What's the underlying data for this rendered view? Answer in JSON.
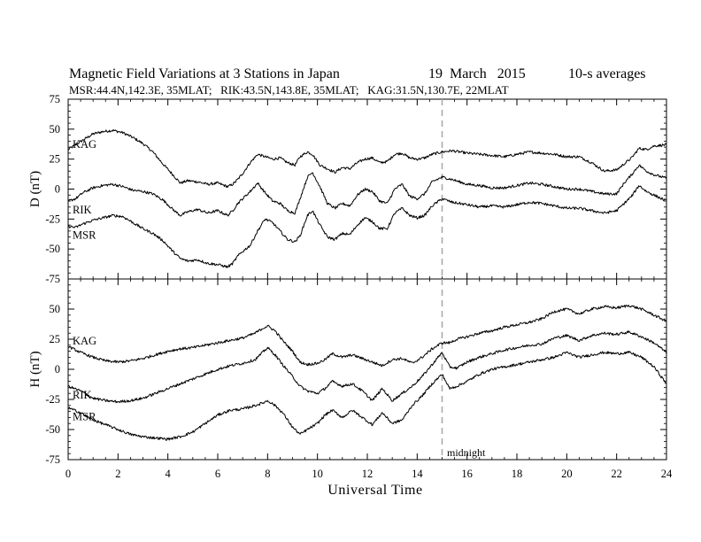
{
  "header": {
    "title": "Magnetic Field Variations at 3 Stations in Japan",
    "date": "19  March   2015",
    "averaging": "10-s averages",
    "stations_info": "MSR:44.4N,142.3E, 35MLAT;   RIK:43.5N,143.8E, 35MLAT;   KAG:31.5N,130.7E, 22MLAT"
  },
  "annotation": "midnight",
  "colors": {
    "trace": "#000000",
    "midnight_line": "#aaaaaa"
  },
  "chart_data": [
    {
      "type": "line",
      "panel": "D",
      "ylabel": "D (nT)",
      "xlim": [
        0,
        24
      ],
      "ylim": [
        -75,
        75
      ],
      "yticks": [
        75,
        50,
        25,
        0,
        -25,
        -50,
        -75
      ],
      "xticks": [
        0,
        2,
        4,
        6,
        8,
        10,
        12,
        14,
        16,
        18,
        20,
        22,
        24
      ],
      "vline_x": 15,
      "series": [
        {
          "name": "KAG",
          "x": [
            0,
            0.3,
            0.6,
            1,
            1.4,
            1.8,
            2.2,
            2.6,
            3,
            3.4,
            3.8,
            4.2,
            4.5,
            4.8,
            5.2,
            5.6,
            6,
            6.4,
            6.6,
            6.8,
            7,
            7.3,
            7.6,
            7.9,
            8.2,
            8.5,
            8.8,
            9.1,
            9.3,
            9.6,
            9.8,
            10.1,
            10.4,
            10.7,
            11,
            11.3,
            11.6,
            11.9,
            12.2,
            12.5,
            12.8,
            13.1,
            13.4,
            13.7,
            14,
            14.3,
            14.6,
            15,
            15.4,
            16,
            16.5,
            17,
            17.5,
            18,
            18.5,
            19,
            19.5,
            20,
            20.5,
            21,
            21.5,
            22,
            22.3,
            22.6,
            22.9,
            23.2,
            23.5,
            24
          ],
          "values": [
            33,
            37,
            41,
            46,
            48,
            49,
            47,
            43,
            38,
            31,
            21,
            12,
            5,
            7,
            6,
            4,
            5,
            2,
            4,
            8,
            13,
            22,
            29,
            27,
            25,
            26,
            22,
            20,
            27,
            31,
            29,
            20,
            17,
            14,
            18,
            17,
            22,
            25,
            26,
            22,
            23,
            29,
            30,
            26,
            25,
            26,
            29,
            31,
            32,
            30,
            29,
            28,
            27,
            29,
            31,
            30,
            29,
            27,
            27,
            22,
            15,
            16,
            21,
            26,
            34,
            33,
            36,
            37
          ]
        },
        {
          "name": "RIK",
          "x": [
            0,
            0.3,
            0.6,
            1,
            1.4,
            1.8,
            2.2,
            2.6,
            3,
            3.4,
            3.8,
            4.2,
            4.5,
            4.8,
            5.2,
            5.6,
            6,
            6.4,
            6.6,
            6.8,
            7,
            7.3,
            7.6,
            7.9,
            8.2,
            8.5,
            8.8,
            9.1,
            9.3,
            9.6,
            9.8,
            10.1,
            10.4,
            10.7,
            11,
            11.3,
            11.6,
            11.9,
            12.2,
            12.5,
            12.8,
            13.1,
            13.4,
            13.7,
            14,
            14.3,
            14.6,
            15,
            15.4,
            16,
            16.5,
            17,
            17.5,
            18,
            18.5,
            19,
            19.5,
            20,
            20.5,
            21,
            21.5,
            22,
            22.3,
            22.6,
            22.9,
            23.2,
            23.5,
            24
          ],
          "values": [
            -10,
            -8,
            -3,
            1,
            3,
            4,
            2,
            -1,
            -2,
            -4,
            -9,
            -17,
            -22,
            -19,
            -17,
            -20,
            -18,
            -22,
            -18,
            -12,
            -8,
            -2,
            5,
            -3,
            -10,
            -12,
            -18,
            -20,
            -8,
            10,
            14,
            2,
            -12,
            -16,
            -12,
            -14,
            -5,
            0,
            -2,
            -10,
            -12,
            0,
            4,
            -6,
            -8,
            -4,
            6,
            10,
            8,
            4,
            3,
            1,
            1,
            3,
            5,
            4,
            2,
            0,
            0,
            -2,
            -4,
            -4,
            5,
            12,
            20,
            15,
            12,
            9
          ]
        },
        {
          "name": "MSR",
          "x": [
            0,
            0.3,
            0.6,
            1,
            1.4,
            1.8,
            2.2,
            2.6,
            3,
            3.4,
            3.8,
            4.2,
            4.5,
            4.8,
            5.2,
            5.6,
            6,
            6.4,
            6.6,
            6.8,
            7,
            7.3,
            7.6,
            7.9,
            8.2,
            8.5,
            8.8,
            9.1,
            9.3,
            9.6,
            9.8,
            10.1,
            10.4,
            10.7,
            11,
            11.3,
            11.6,
            11.9,
            12.2,
            12.5,
            12.8,
            13.1,
            13.4,
            13.7,
            14,
            14.3,
            14.6,
            15,
            15.4,
            16,
            16.5,
            17,
            17.5,
            18,
            18.5,
            19,
            19.5,
            20,
            20.5,
            21,
            21.5,
            22,
            22.3,
            22.6,
            22.9,
            23.2,
            23.5,
            24
          ],
          "values": [
            -31,
            -32,
            -29,
            -26,
            -24,
            -22,
            -23,
            -28,
            -33,
            -37,
            -43,
            -52,
            -58,
            -60,
            -59,
            -62,
            -63,
            -65,
            -62,
            -56,
            -52,
            -47,
            -35,
            -25,
            -28,
            -35,
            -42,
            -44,
            -39,
            -22,
            -18,
            -30,
            -40,
            -42,
            -37,
            -38,
            -30,
            -24,
            -27,
            -33,
            -33,
            -20,
            -16,
            -22,
            -24,
            -22,
            -14,
            -8,
            -11,
            -13,
            -15,
            -14,
            -15,
            -13,
            -11,
            -12,
            -14,
            -16,
            -16,
            -18,
            -20,
            -18,
            -12,
            -6,
            3,
            -2,
            -5,
            -10
          ]
        }
      ]
    },
    {
      "type": "line",
      "panel": "H",
      "ylabel": "H (nT)",
      "xlabel": "Universal Time",
      "xlim": [
        0,
        24
      ],
      "ylim": [
        -75,
        75
      ],
      "yticks": [
        50,
        25,
        0,
        -25,
        -50,
        -75
      ],
      "xticks": [
        0,
        2,
        4,
        6,
        8,
        10,
        12,
        14,
        16,
        18,
        20,
        22,
        24
      ],
      "vline_x": 15,
      "series": [
        {
          "name": "KAG",
          "x": [
            0,
            0.5,
            1,
            1.5,
            2,
            2.5,
            3,
            3.5,
            4,
            4.5,
            5,
            5.5,
            6,
            6.5,
            7,
            7.5,
            7.8,
            8,
            8.3,
            8.6,
            9,
            9.3,
            9.6,
            10,
            10.3,
            10.6,
            11,
            11.4,
            11.8,
            12.2,
            12.6,
            13,
            13.4,
            13.8,
            14.2,
            14.6,
            15,
            15.3,
            15.6,
            16,
            16.5,
            17,
            17.5,
            18,
            18.5,
            19,
            19.5,
            20,
            20.5,
            21,
            21.5,
            22,
            22.5,
            23,
            23.5,
            24
          ],
          "values": [
            19,
            14,
            10,
            7,
            6,
            7,
            9,
            12,
            15,
            17,
            18,
            20,
            22,
            24,
            26,
            30,
            34,
            36,
            32,
            24,
            15,
            6,
            4,
            5,
            8,
            13,
            10,
            12,
            9,
            6,
            3,
            8,
            9,
            5,
            10,
            17,
            22,
            22,
            25,
            27,
            30,
            32,
            35,
            37,
            39,
            42,
            48,
            50,
            46,
            50,
            52,
            51,
            53,
            50,
            45,
            40
          ]
        },
        {
          "name": "RIK",
          "x": [
            0,
            0.5,
            1,
            1.5,
            2,
            2.5,
            3,
            3.5,
            4,
            4.5,
            5,
            5.5,
            6,
            6.5,
            7,
            7.5,
            7.8,
            8,
            8.3,
            8.6,
            9,
            9.3,
            9.6,
            10,
            10.3,
            10.6,
            11,
            11.4,
            11.8,
            12.2,
            12.6,
            13,
            13.4,
            13.8,
            14.2,
            14.6,
            15,
            15.3,
            15.6,
            16,
            16.5,
            17,
            17.5,
            18,
            18.5,
            19,
            19.5,
            20,
            20.5,
            21,
            21.5,
            22,
            22.5,
            23,
            23.5,
            24
          ],
          "values": [
            -14,
            -18,
            -24,
            -26,
            -27,
            -26,
            -24,
            -20,
            -16,
            -12,
            -8,
            -4,
            0,
            3,
            5,
            8,
            14,
            18,
            12,
            4,
            -6,
            -14,
            -18,
            -20,
            -16,
            -10,
            -14,
            -12,
            -18,
            -26,
            -16,
            -26,
            -20,
            -14,
            -6,
            4,
            14,
            2,
            1,
            6,
            10,
            13,
            16,
            18,
            20,
            21,
            26,
            28,
            24,
            28,
            30,
            29,
            31,
            27,
            22,
            14
          ]
        },
        {
          "name": "MSR",
          "x": [
            0,
            0.5,
            1,
            1.5,
            2,
            2.5,
            3,
            3.5,
            4,
            4.5,
            5,
            5.5,
            6,
            6.5,
            7,
            7.5,
            7.8,
            8,
            8.3,
            8.6,
            9,
            9.3,
            9.6,
            10,
            10.3,
            10.6,
            11,
            11.4,
            11.8,
            12.2,
            12.6,
            13,
            13.4,
            13.8,
            14.2,
            14.6,
            15,
            15.3,
            15.6,
            16,
            16.5,
            17,
            17.5,
            18,
            18.5,
            19,
            19.5,
            20,
            20.5,
            21,
            21.5,
            22,
            22.5,
            23,
            23.5,
            24
          ],
          "values": [
            -32,
            -36,
            -42,
            -46,
            -50,
            -54,
            -56,
            -57,
            -58,
            -56,
            -52,
            -45,
            -38,
            -34,
            -33,
            -30,
            -28,
            -26,
            -30,
            -36,
            -48,
            -54,
            -50,
            -45,
            -38,
            -34,
            -40,
            -34,
            -40,
            -46,
            -36,
            -45,
            -42,
            -30,
            -22,
            -12,
            -4,
            -16,
            -14,
            -10,
            -4,
            0,
            2,
            4,
            6,
            8,
            10,
            14,
            10,
            12,
            14,
            13,
            14,
            10,
            2,
            -12
          ]
        }
      ]
    }
  ]
}
